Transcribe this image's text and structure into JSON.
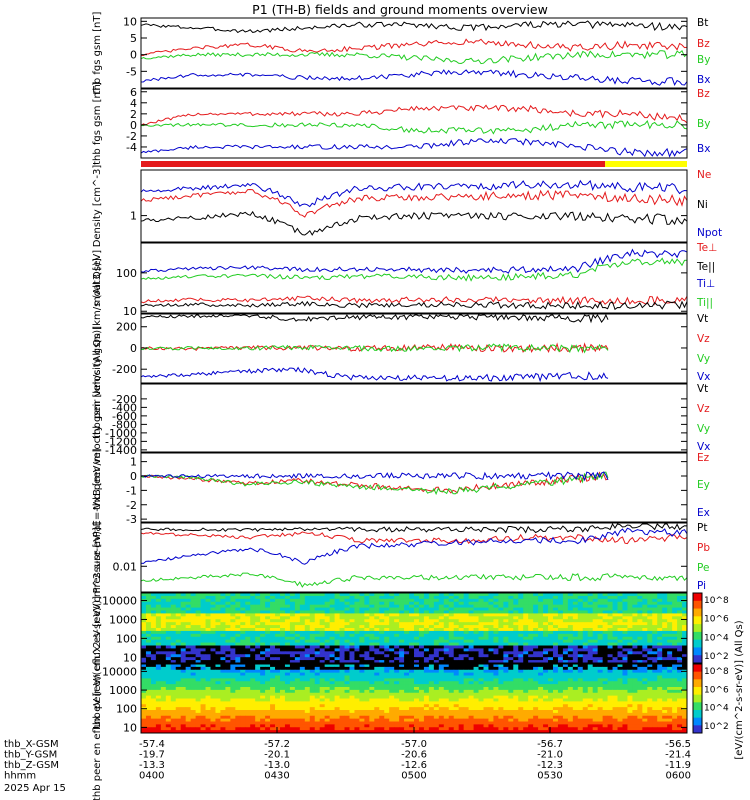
{
  "title": "P1 (TH-B) fields and ground moments overview",
  "date_label": "2025 Apr 15",
  "colors": {
    "black": "#000000",
    "red": "#e41a1c",
    "green": "#22cc22",
    "blue": "#0000cc",
    "yellow": "#ffff00"
  },
  "orbit_bar": {
    "red_fraction": 0.85,
    "colors": [
      "red",
      "yellow"
    ]
  },
  "x_axis": {
    "rows": [
      {
        "label": "thb_X-GSM",
        "values": [
          "-57.4",
          "-57.2",
          "-57.0",
          "-56.7",
          "-56.5"
        ]
      },
      {
        "label": "thb_Y-GSM",
        "values": [
          "-19.7",
          "-20.1",
          "-20.6",
          "-21.0",
          "-21.4"
        ]
      },
      {
        "label": "thb_Z-GSM",
        "values": [
          "-13.3",
          "-13.0",
          "-12.6",
          "-12.3",
          "-11.9"
        ]
      },
      {
        "label": "hhmm",
        "values": [
          "0400",
          "0430",
          "0500",
          "0530",
          "0600"
        ]
      }
    ]
  },
  "colorbar": {
    "label": "[eV/(cm^2-s-sr-eV)] (All Qs)",
    "upper": {
      "ticks": [
        "10^8",
        "10^6",
        "10^4",
        "10^2"
      ]
    },
    "lower": {
      "ticks": [
        "10^8",
        "10^6",
        "10^4",
        "10^2"
      ]
    }
  },
  "chart_data": [
    {
      "type": "line",
      "ylabel": "thb fgs gsm [nT]",
      "ylim": [
        -10,
        11
      ],
      "yticks": [
        "10",
        "5",
        "0",
        "-5"
      ],
      "ytick_values": [
        10,
        5,
        0,
        -5
      ],
      "series": [
        {
          "name": "Bt",
          "color": "black",
          "values": [
            9,
            8,
            7,
            8,
            9,
            9,
            8,
            9,
            9,
            9,
            8
          ]
        },
        {
          "name": "Bz",
          "color": "red",
          "values": [
            0,
            2,
            3,
            1,
            2,
            3,
            4,
            3,
            2,
            3,
            2
          ]
        },
        {
          "name": "By",
          "color": "green",
          "values": [
            -1,
            0,
            0,
            0,
            0,
            -1,
            -2,
            -1,
            0,
            0,
            0
          ]
        },
        {
          "name": "Bx",
          "color": "blue",
          "values": [
            -8,
            -6,
            -6,
            -7,
            -7,
            -6,
            -5,
            -6,
            -7,
            -8,
            -8
          ]
        }
      ]
    },
    {
      "type": "line",
      "ylabel": "thb fgs gsm [nT]",
      "ylim": [
        -6,
        6.5
      ],
      "yticks": [
        "6",
        "4",
        "2",
        "0",
        "-2",
        "-4"
      ],
      "ytick_values": [
        6,
        4,
        2,
        0,
        -2,
        -4
      ],
      "series": [
        {
          "name": "Bz",
          "color": "red",
          "values": [
            0,
            2,
            2,
            2,
            2,
            3,
            3,
            3,
            2,
            2,
            1
          ]
        },
        {
          "name": "By",
          "color": "green",
          "values": [
            0,
            0,
            0,
            0,
            0,
            -1,
            -1,
            -1,
            0,
            0,
            0
          ]
        },
        {
          "name": "Bx",
          "color": "blue",
          "values": [
            -5,
            -4,
            -4,
            -4,
            -4,
            -4,
            -3,
            -3,
            -4,
            -5,
            -5
          ]
        }
      ]
    },
    {
      "type": "line",
      "ylabel": "Density [cm^-3]",
      "scale": "log",
      "ylim": [
        0.3,
        8
      ],
      "yticks": [
        "1"
      ],
      "ytick_values": [
        1
      ],
      "series": [
        {
          "name": "Ne",
          "color": "red",
          "values": [
            2,
            2.5,
            3,
            1,
            2.2,
            2.3,
            2.4,
            2.5,
            2.6,
            2.2,
            2
          ]
        },
        {
          "name": "Ni",
          "color": "black",
          "values": [
            0.8,
            0.9,
            1.1,
            0.4,
            0.9,
            1,
            1,
            1,
            1,
            0.9,
            0.8
          ]
        },
        {
          "name": "Npot",
          "color": "blue",
          "values": [
            3,
            3.5,
            4,
            1.5,
            3.5,
            3.7,
            3.8,
            4,
            4,
            3.6,
            3.3
          ]
        }
      ]
    },
    {
      "type": "line",
      "ylabel": "moat3 [eV]",
      "scale": "log",
      "ylim": [
        9,
        600
      ],
      "yticks": [
        "100",
        "10"
      ],
      "ytick_values": [
        100,
        10
      ],
      "series": [
        {
          "name": "Te⊥",
          "color": "red",
          "values": [
            18,
            20,
            19,
            22,
            19,
            20,
            20,
            19,
            19,
            19,
            20
          ]
        },
        {
          "name": "Te||",
          "color": "black",
          "values": [
            14,
            15,
            14,
            16,
            14,
            15,
            15,
            14,
            14,
            14,
            15
          ]
        },
        {
          "name": "Ti⊥",
          "color": "blue",
          "values": [
            110,
            130,
            140,
            120,
            125,
            120,
            115,
            120,
            130,
            320,
            300
          ]
        },
        {
          "name": "Ti||",
          "color": "green",
          "values": [
            70,
            80,
            85,
            75,
            80,
            80,
            75,
            80,
            90,
            200,
            190
          ]
        }
      ]
    },
    {
      "type": "line",
      "ylabel": "thb peir velocity gsm [km/s (All Qs)]",
      "ylim": [
        -330,
        320
      ],
      "yticks": [
        "200",
        "0",
        "-200"
      ],
      "ytick_values": [
        200,
        0,
        -200
      ],
      "series": [
        {
          "name": "Vt",
          "color": "black",
          "values": [
            290,
            300,
            310,
            270,
            290,
            290,
            300,
            290,
            285,
            280
          ]
        },
        {
          "name": "Vz",
          "color": "red",
          "values": [
            0,
            -10,
            5,
            0,
            -5,
            0,
            10,
            -10,
            0,
            5
          ]
        },
        {
          "name": "Vy",
          "color": "green",
          "values": [
            -10,
            0,
            -5,
            5,
            0,
            -10,
            0,
            5,
            -5,
            0
          ]
        },
        {
          "name": "Vx",
          "color": "blue",
          "values": [
            -270,
            -250,
            -220,
            -200,
            -280,
            -280,
            -290,
            -280,
            -270,
            -260
          ]
        }
      ]
    },
    {
      "type": "line",
      "ylabel": "thb peer velocity gsm [km/s (All Qs)]",
      "ylim": [
        -1450,
        150
      ],
      "yticks": [
        "-200",
        "-400",
        "-600",
        "-800",
        "-1000",
        "-1200",
        "-1400"
      ],
      "ytick_values": [
        -200,
        -400,
        -600,
        -800,
        -1000,
        -1200,
        -1400
      ],
      "series": [
        {
          "name": "Vt",
          "color": "black",
          "values": []
        },
        {
          "name": "Vz",
          "color": "red",
          "values": []
        },
        {
          "name": "Vy",
          "color": "green",
          "values": []
        },
        {
          "name": "Vx",
          "color": "blue",
          "values": []
        }
      ]
    },
    {
      "type": "line",
      "ylabel": "E=-VxB [mV/m]",
      "ylim": [
        -3.2,
        1.6
      ],
      "yticks": [
        "1",
        "0",
        "-1",
        "-2",
        "-3"
      ],
      "ytick_values": [
        1,
        0,
        -1,
        -2,
        -3
      ],
      "series": [
        {
          "name": "Ez",
          "color": "red",
          "values": [
            0,
            -0.2,
            -0.5,
            -0.3,
            -0.6,
            -0.8,
            -1,
            -0.6,
            -0.3,
            0
          ]
        },
        {
          "name": "Ey",
          "color": "green",
          "values": [
            0,
            -0.1,
            -0.6,
            -0.4,
            -0.7,
            -0.9,
            -1.1,
            -0.7,
            -0.4,
            0.1
          ]
        },
        {
          "name": "Ex",
          "color": "blue",
          "values": [
            0,
            0,
            0,
            0,
            0,
            0,
            0,
            0,
            0,
            0
          ]
        }
      ]
    },
    {
      "type": "line",
      "ylabel": "Pressure [nPa]",
      "scale": "log",
      "ylim": [
        0.002,
        0.15
      ],
      "yticks": [
        "0.01"
      ],
      "ytick_values": [
        0.01
      ],
      "series": [
        {
          "name": "Pt",
          "color": "black",
          "values": [
            0.1,
            0.1,
            0.095,
            0.1,
            0.1,
            0.1,
            0.1,
            0.1,
            0.1,
            0.13,
            0.12
          ]
        },
        {
          "name": "Pb",
          "color": "red",
          "values": [
            0.08,
            0.07,
            0.06,
            0.08,
            0.05,
            0.05,
            0.05,
            0.06,
            0.06,
            0.05,
            0.06
          ]
        },
        {
          "name": "Pe",
          "color": "green",
          "values": [
            0.004,
            0.005,
            0.006,
            0.003,
            0.005,
            0.005,
            0.005,
            0.005,
            0.005,
            0.005,
            0.005
          ]
        },
        {
          "name": "Pi",
          "color": "blue",
          "values": [
            0.012,
            0.02,
            0.03,
            0.012,
            0.035,
            0.04,
            0.045,
            0.05,
            0.05,
            0.09,
            0.08
          ]
        }
      ]
    },
    {
      "type": "heatmap",
      "ylabel": "thb peir en eflux eV [eV/(cm^2-s-sr-eV)]",
      "scale": "log",
      "ylim": [
        5,
        25000
      ],
      "yticks": [
        "10000",
        "1000",
        "100",
        "10"
      ],
      "ytick_values": [
        10000,
        1000,
        100,
        10
      ]
    },
    {
      "type": "heatmap",
      "ylabel": "thb peer en eflux eV [eV/(cm^2-s-sr-eV)]",
      "scale": "log",
      "ylim": [
        5,
        25000
      ],
      "yticks": [
        "10000",
        "1000",
        "100",
        "10"
      ],
      "ytick_values": [
        10000,
        1000,
        100,
        10
      ]
    }
  ]
}
